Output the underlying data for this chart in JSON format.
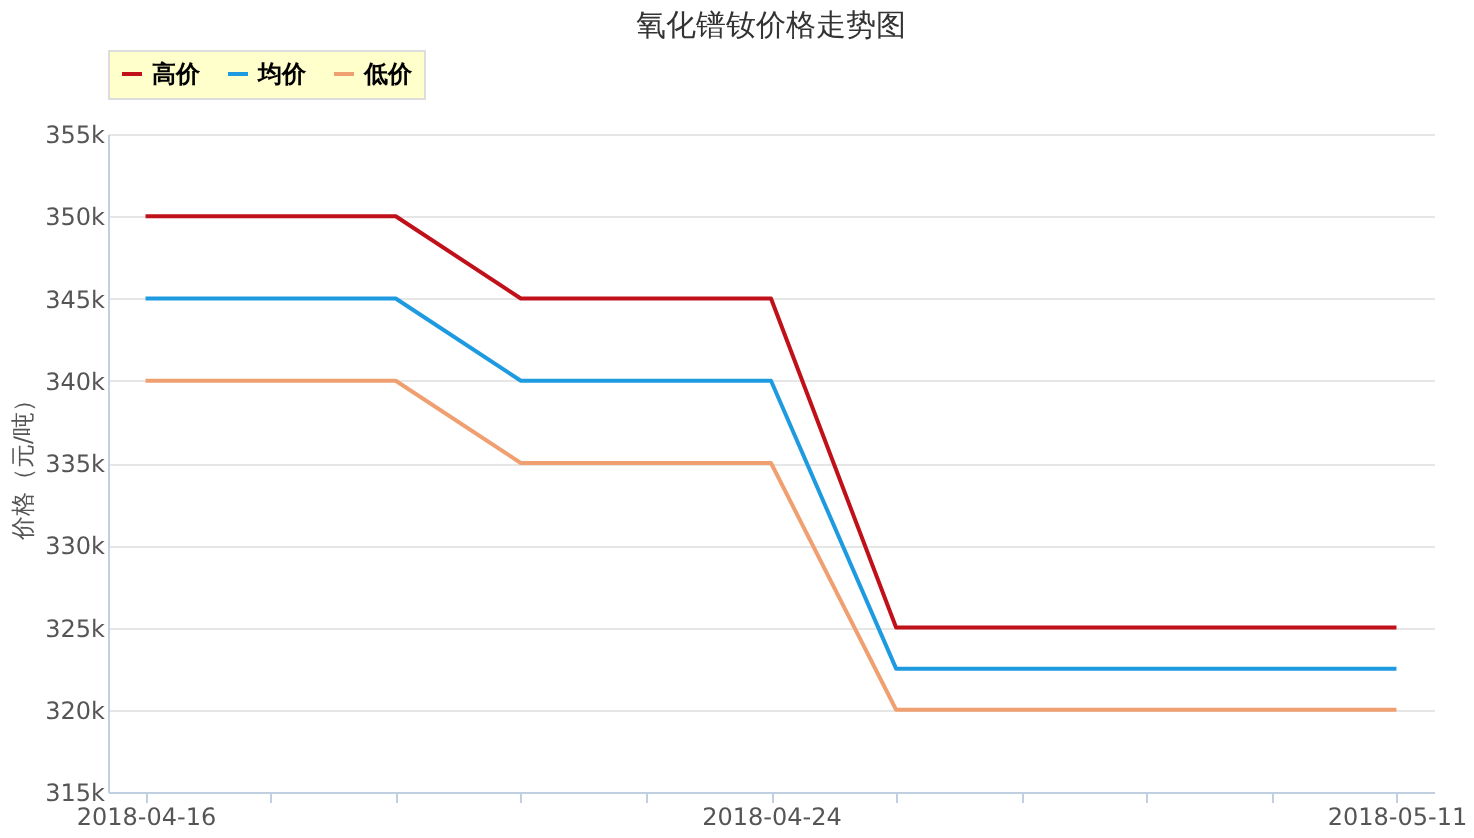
{
  "chart_data": {
    "type": "line",
    "title": "氧化镨钕价格走势图",
    "ylabel": "价格（元/吨）",
    "categories": [
      "2018-04-16",
      null,
      null,
      null,
      null,
      "2018-04-24",
      null,
      null,
      null,
      null,
      "2018-05-11"
    ],
    "series": [
      {
        "name": "高价",
        "color": "#c0101a",
        "values": [
          350000,
          350000,
          350000,
          345000,
          345000,
          345000,
          325000,
          325000,
          325000,
          325000,
          325000
        ]
      },
      {
        "name": "均价",
        "color": "#1e9be0",
        "values": [
          345000,
          345000,
          345000,
          340000,
          340000,
          340000,
          322500,
          322500,
          322500,
          322500,
          322500
        ]
      },
      {
        "name": "低价",
        "color": "#f0a070",
        "values": [
          340000,
          340000,
          340000,
          335000,
          335000,
          335000,
          320000,
          320000,
          320000,
          320000,
          320000
        ]
      }
    ],
    "ylim": [
      315000,
      355000
    ],
    "yticks": [
      {
        "value": 315000,
        "label": "315k"
      },
      {
        "value": 320000,
        "label": "320k"
      },
      {
        "value": 325000,
        "label": "325k"
      },
      {
        "value": 330000,
        "label": "330k"
      },
      {
        "value": 335000,
        "label": "335k"
      },
      {
        "value": 340000,
        "label": "340k"
      },
      {
        "value": 345000,
        "label": "345k"
      },
      {
        "value": 350000,
        "label": "350k"
      },
      {
        "value": 355000,
        "label": "355k"
      }
    ],
    "grid": "y",
    "legend": "top",
    "marker": "none",
    "line_style": "solid"
  }
}
